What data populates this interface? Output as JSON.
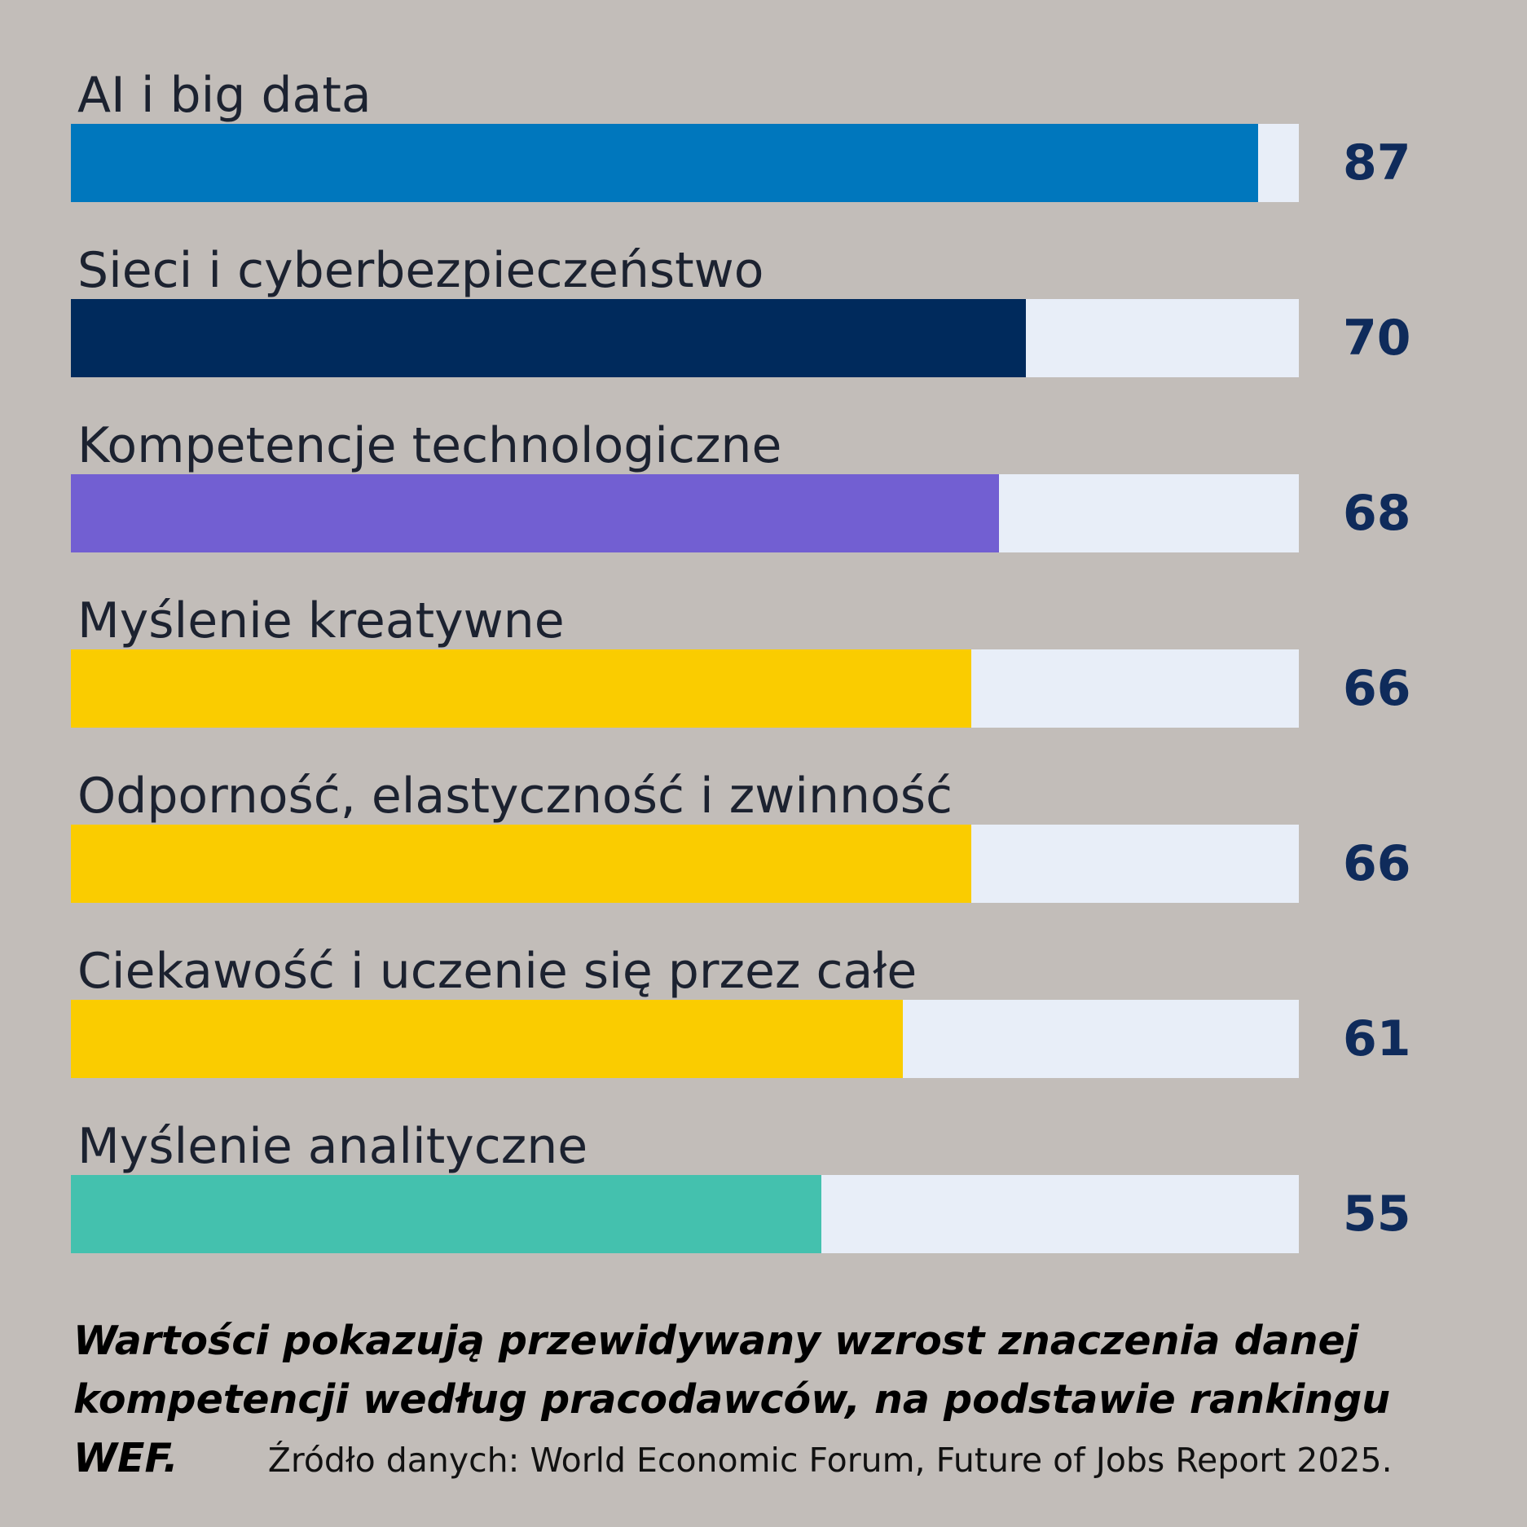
{
  "chart_data": {
    "type": "bar",
    "orientation": "horizontal",
    "categories": [
      "AI i big data",
      "Sieci i cyberbezpieczeństwo",
      "Kompetencje technologiczne",
      "Myślenie kreatywne",
      "Odporność, elastyczność i zwinność",
      "Ciekawość i uczenie się przez całe",
      "Myślenie analityczne"
    ],
    "values": [
      87,
      70,
      68,
      66,
      66,
      61,
      55
    ],
    "colors": [
      "#0077bd",
      "#002a5c",
      "#725fd2",
      "#facc00",
      "#facc00",
      "#facc00",
      "#44c1ae"
    ],
    "track_color": "#e8eef8",
    "value_label_color": "#0f2b5b",
    "xlim": [
      0,
      90
    ],
    "grid": false,
    "legend": "none"
  },
  "footer": {
    "note": "Wartości pokazują przewidywany wzrost znaczenia danej kompetencji według pracodawców, na podstawie rankingu WEF.",
    "source": "Źródło danych: World Economic Forum, Future of Jobs Report 2025."
  }
}
